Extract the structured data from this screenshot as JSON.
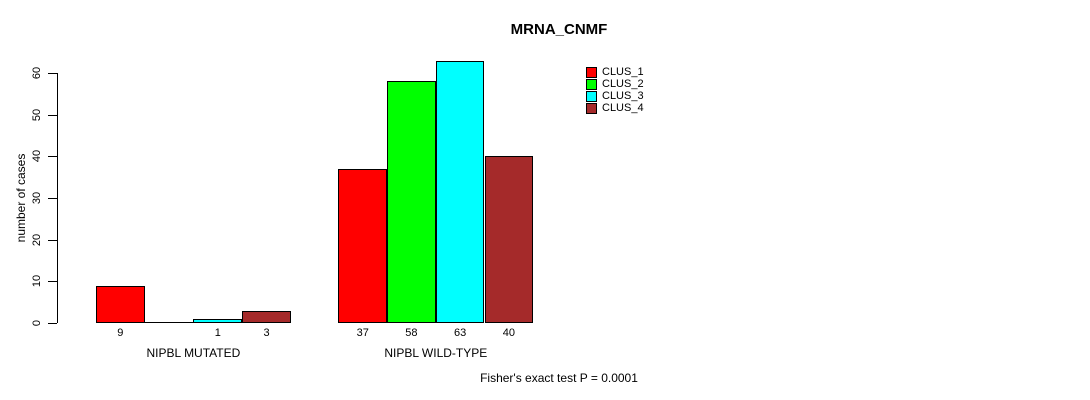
{
  "chart_data": {
    "type": "bar",
    "title": "MRNA_CNMF",
    "ylabel": "number of cases",
    "xlabel": "",
    "ylim": [
      0,
      60
    ],
    "yticks": [
      0,
      10,
      20,
      30,
      40,
      50,
      60
    ],
    "grid": false,
    "legend_position": "top-right-of-plot",
    "categories": [
      "NIPBL MUTATED",
      "NIPBL WILD-TYPE"
    ],
    "series": [
      {
        "name": "CLUS_1",
        "color": "#ff0000",
        "values": [
          9,
          37
        ]
      },
      {
        "name": "CLUS_2",
        "color": "#00ff00",
        "values": [
          0,
          58
        ]
      },
      {
        "name": "CLUS_3",
        "color": "#00ffff",
        "values": [
          1,
          63
        ]
      },
      {
        "name": "CLUS_4",
        "color": "#a52a2a",
        "values": [
          3,
          40
        ]
      }
    ],
    "bar_value_labels": [
      [
        "9",
        "",
        "1",
        "3"
      ],
      [
        "37",
        "58",
        "63",
        "40"
      ]
    ],
    "annotation": "Fisher's exact test P = 0.0001"
  },
  "colors": {
    "background": "#ffffff",
    "axis": "#000000",
    "bar_border": "#000000"
  }
}
